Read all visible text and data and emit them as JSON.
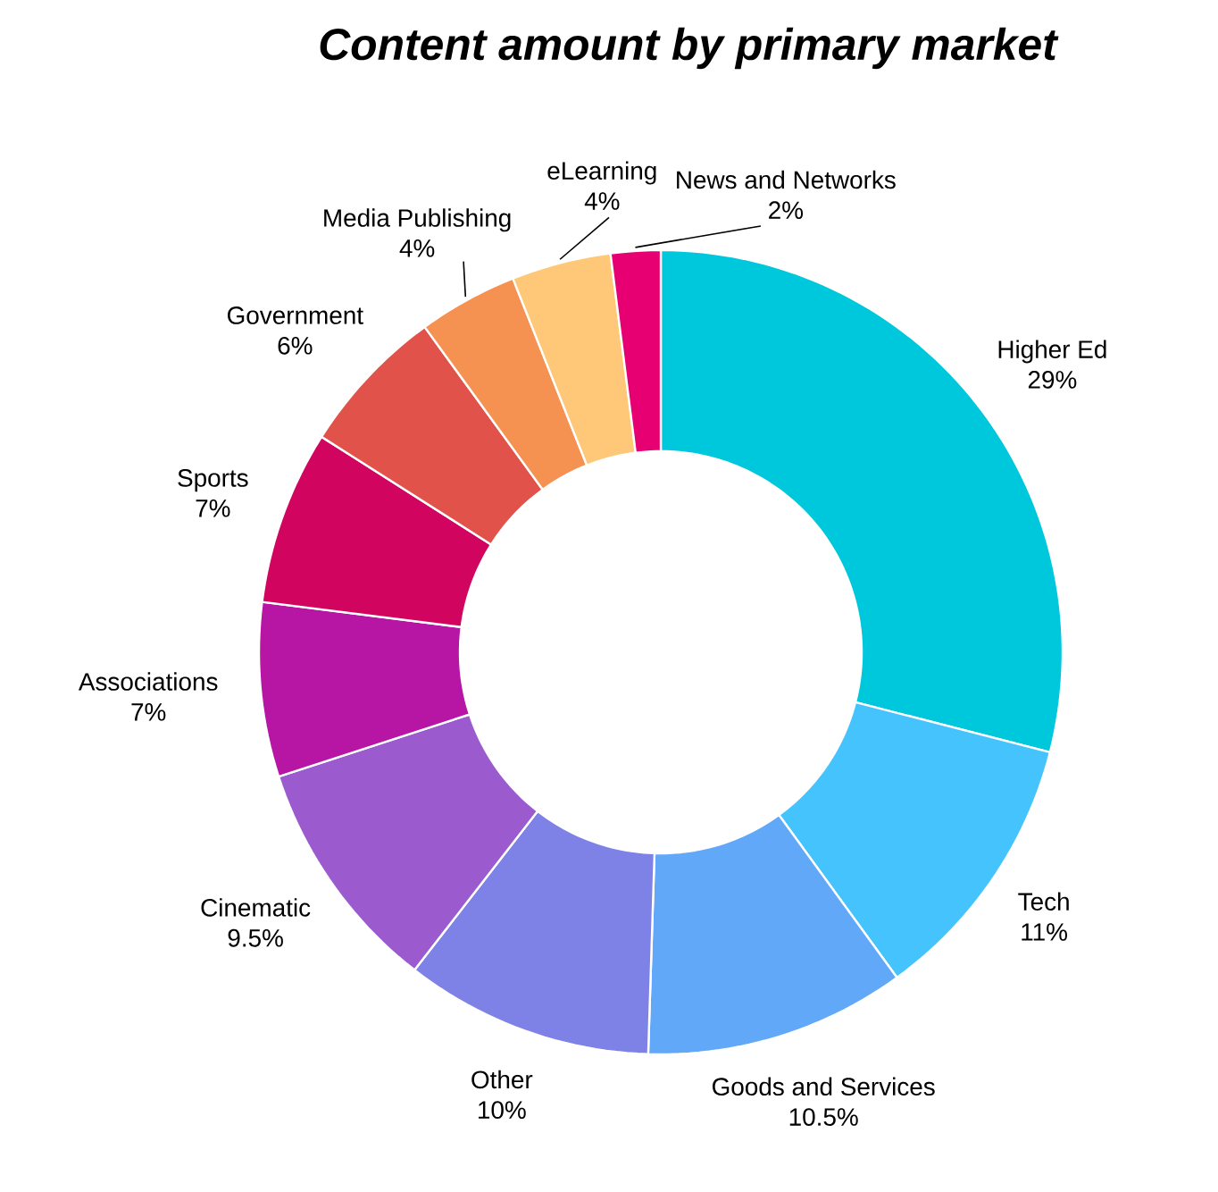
{
  "chart_data": {
    "type": "donut",
    "title": "Content amount by primary market",
    "categories": [
      "Higher Ed",
      "Tech",
      "Goods and Services",
      "Other",
      "Cinematic",
      "Associations",
      "Sports",
      "Government",
      "Media Publishing",
      "eLearning",
      "News and Networks"
    ],
    "values": [
      29,
      11,
      10.5,
      10,
      9.5,
      7,
      7,
      6,
      4,
      4,
      2
    ],
    "value_labels": [
      "29%",
      "11%",
      "10.5%",
      "10%",
      "9.5%",
      "7%",
      "7%",
      "6%",
      "4%",
      "4%",
      "2%"
    ],
    "colors": [
      "#00c8dc",
      "#45c3fc",
      "#62a8f8",
      "#7e82e6",
      "#9b5bcf",
      "#b616a3",
      "#d1055f",
      "#e0524a",
      "#f59251",
      "#fec878",
      "#e60072"
    ]
  }
}
